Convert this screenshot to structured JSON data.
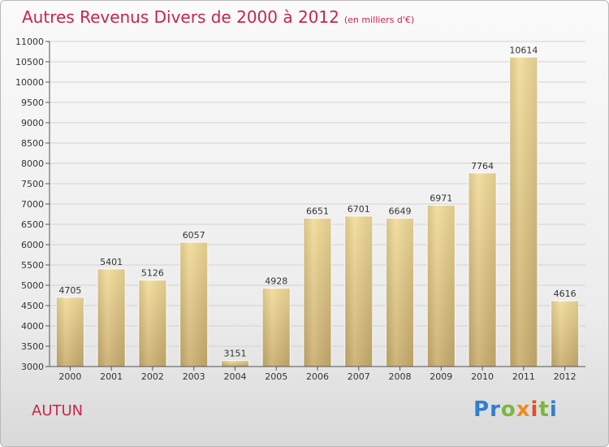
{
  "header": {
    "title": "Autres Revenus Divers de 2000 à 2012",
    "subtitle": "(en milliers d'€)"
  },
  "footer": {
    "city": "AUTUN",
    "logo_text": "Proxiti"
  },
  "colors": {
    "title": "#c8254c",
    "bar_light": "#f2db98",
    "bar_dark": "#c9ad6e"
  },
  "chart_data": {
    "type": "bar",
    "title": "Autres Revenus Divers de 2000 à 2012",
    "subtitle": "(en milliers d'€)",
    "categories": [
      "2000",
      "2001",
      "2002",
      "2003",
      "2004",
      "2005",
      "2006",
      "2007",
      "2008",
      "2009",
      "2010",
      "2011",
      "2012"
    ],
    "values": [
      4705,
      5401,
      5126,
      6057,
      3151,
      4928,
      6651,
      6701,
      6649,
      6971,
      7764,
      10614,
      4616
    ],
    "ylim": [
      3000,
      11000
    ],
    "yticks": [
      3000,
      3500,
      4000,
      4500,
      5000,
      5500,
      6000,
      6500,
      7000,
      7500,
      8000,
      8500,
      9000,
      9500,
      10000,
      10500,
      11000
    ],
    "grid": true,
    "xlabel": "",
    "ylabel": ""
  }
}
